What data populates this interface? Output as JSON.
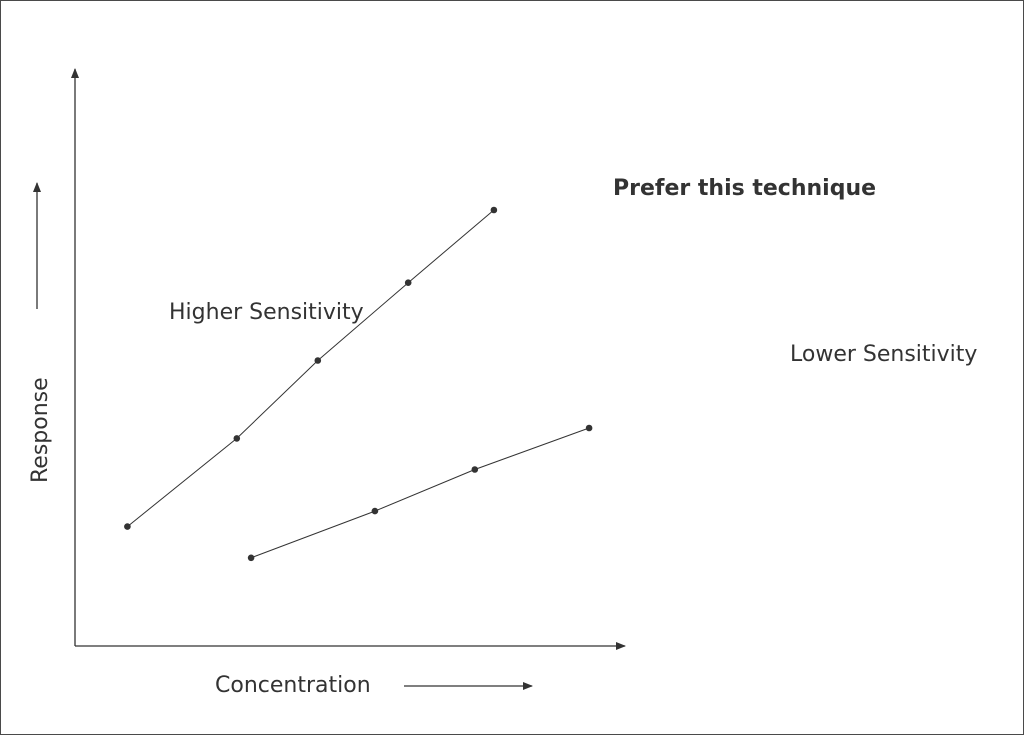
{
  "chart_data": {
    "type": "line",
    "title": "",
    "xlabel": "Concentration",
    "ylabel": "Response",
    "xlim": [
      0,
      100
    ],
    "ylim": [
      0,
      100
    ],
    "grid": false,
    "x_ticks": false,
    "y_ticks": false,
    "series": [
      {
        "x": [
          11,
          34,
          51,
          70,
          88
        ],
        "y": [
          23,
          40,
          55,
          70,
          84
        ]
      },
      {
        "x": [
          37,
          63,
          84,
          108
        ],
        "y": [
          17,
          26,
          34,
          42
        ]
      }
    ],
    "annotations": {
      "higher": "Higher Sensitivity",
      "lower": "Lower Sensitivity",
      "prefer": "Prefer this technique"
    },
    "colors": {
      "ink": "#333333",
      "frame": "#4a4a4a",
      "background": "#ffffff"
    }
  }
}
